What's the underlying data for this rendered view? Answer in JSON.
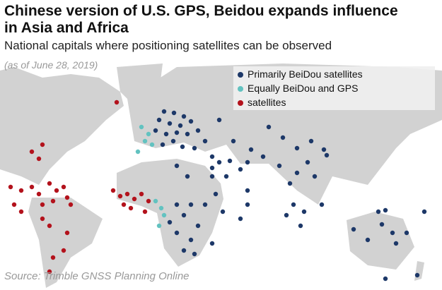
{
  "title": "Chinese version of U.S. GPS, Beidou expands influence in Asia and Africa",
  "subtitle": "National capitals where positioning satellites can be observed",
  "note": "(as of June 28, 2019)",
  "legend": [
    {
      "label": "Primarily BeiDou satellites",
      "color": "#1d3868"
    },
    {
      "label": "Equally BeiDou and GPS",
      "color": "#62c2c0"
    },
    {
      "label": "satellites",
      "color": "#b3121c"
    }
  ],
  "source": "Source: Trimble GNSS Planning Online"
}
